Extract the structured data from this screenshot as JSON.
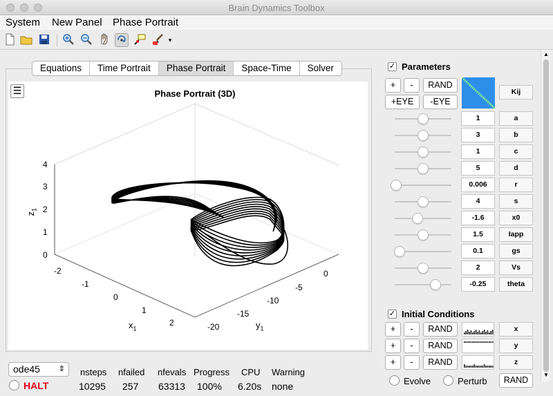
{
  "window": {
    "title": "Brain Dynamics Toolbox"
  },
  "menubar": [
    "System",
    "New Panel",
    "Phase Portrait"
  ],
  "toolbar": {
    "icons": [
      "new-file-icon",
      "open-folder-icon",
      "save-icon",
      "zoom-in-icon",
      "zoom-out-icon",
      "pan-hand-icon",
      "rotate-3d-icon",
      "data-cursor-icon",
      "brush-icon",
      "dropdown-arrow-icon"
    ]
  },
  "tabs": [
    "Equations",
    "Time Portrait",
    "Phase Portrait",
    "Space-Time",
    "Solver"
  ],
  "active_tab": "Phase Portrait",
  "plot": {
    "menu_glyph": "☰",
    "title": "Phase Portrait (3D)",
    "xlabel": "x",
    "xlabel_sub": "1",
    "ylabel": "y",
    "ylabel_sub": "1",
    "zlabel": "z",
    "zlabel_sub": "1",
    "xticks": [
      "-2",
      "-1",
      "0",
      "1",
      "2"
    ],
    "yticks": [
      "-20",
      "-15",
      "-10",
      "-5",
      "0"
    ],
    "zticks": [
      "0",
      "1",
      "2",
      "3",
      "4"
    ]
  },
  "parameters": {
    "title": "Parameters",
    "checked": true,
    "plus": "+",
    "minus": "-",
    "rand": "RAND",
    "eye_plus": "+EYE",
    "eye_minus": "-EYE",
    "kij": "Kij",
    "rows": [
      {
        "name": "a",
        "value": "1",
        "level": 0.5
      },
      {
        "name": "b",
        "value": "3",
        "level": 0.5
      },
      {
        "name": "c",
        "value": "1",
        "level": 0.5
      },
      {
        "name": "d",
        "value": "5",
        "level": 0.5
      },
      {
        "name": "r",
        "value": "0.006",
        "level": 0.02
      },
      {
        "name": "s",
        "value": "4",
        "level": 0.5
      },
      {
        "name": "x0",
        "value": "-1.6",
        "level": 0.4
      },
      {
        "name": "Iapp",
        "value": "1.5",
        "level": 0.5
      },
      {
        "name": "gs",
        "value": "0.1",
        "level": 0.09
      },
      {
        "name": "Vs",
        "value": "2",
        "level": 0.5
      },
      {
        "name": "theta",
        "value": "-0.25",
        "level": 0.72
      }
    ]
  },
  "initial_conditions": {
    "title": "Initial Conditions",
    "checked": true,
    "rows": [
      {
        "name": "x",
        "plus": "+",
        "minus": "-",
        "rand": "RAND"
      },
      {
        "name": "y",
        "plus": "+",
        "minus": "-",
        "rand": "RAND"
      },
      {
        "name": "z",
        "plus": "+",
        "minus": "-",
        "rand": "RAND"
      }
    ],
    "evolve": "Evolve",
    "perturb": "Perturb",
    "rand": "RAND"
  },
  "solver": {
    "selected": "ode45",
    "arrows": "⇕",
    "halt": "HALT"
  },
  "stats": {
    "headers": [
      "nsteps",
      "nfailed",
      "nfevals",
      "Progress",
      "CPU",
      "Warning"
    ],
    "values": [
      "10295",
      "257",
      "63313",
      "100%",
      "6.20s",
      "none"
    ]
  },
  "colors": {
    "halt": "#e8001c",
    "kij_bg": "#2d8fea",
    "kij_diag": "#7ff08c"
  }
}
